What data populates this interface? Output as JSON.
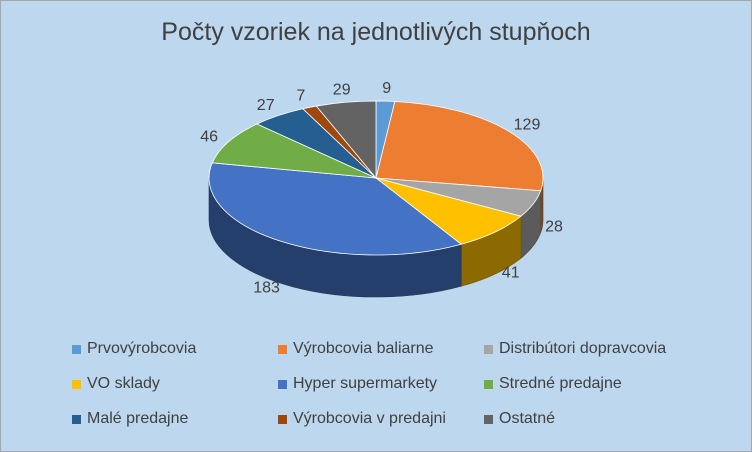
{
  "chart_data": {
    "type": "pie",
    "title": "Počty vzoriek na jednotlivých stupňoch",
    "categories": [
      "Prvovýrobcovia",
      "Výrobcovia baliarne",
      "Distribútori dopravcovia",
      "VO sklady",
      "Hyper supermarkety",
      "Stredné predajne",
      "Malé predajne",
      "Výrobcovia v predajni",
      "Ostatné"
    ],
    "values": [
      9,
      129,
      28,
      41,
      183,
      46,
      27,
      7,
      29
    ],
    "labels": [
      "9",
      "129",
      "28",
      "41",
      "183",
      "46",
      "27",
      "7",
      "29"
    ],
    "colors": [
      "#5b9bd5",
      "#ed7d31",
      "#a5a5a5",
      "#ffc000",
      "#4472c4",
      "#70ad47",
      "#255e91",
      "#9e480e",
      "#636363"
    ],
    "legend_position": "bottom",
    "style": "3d"
  }
}
